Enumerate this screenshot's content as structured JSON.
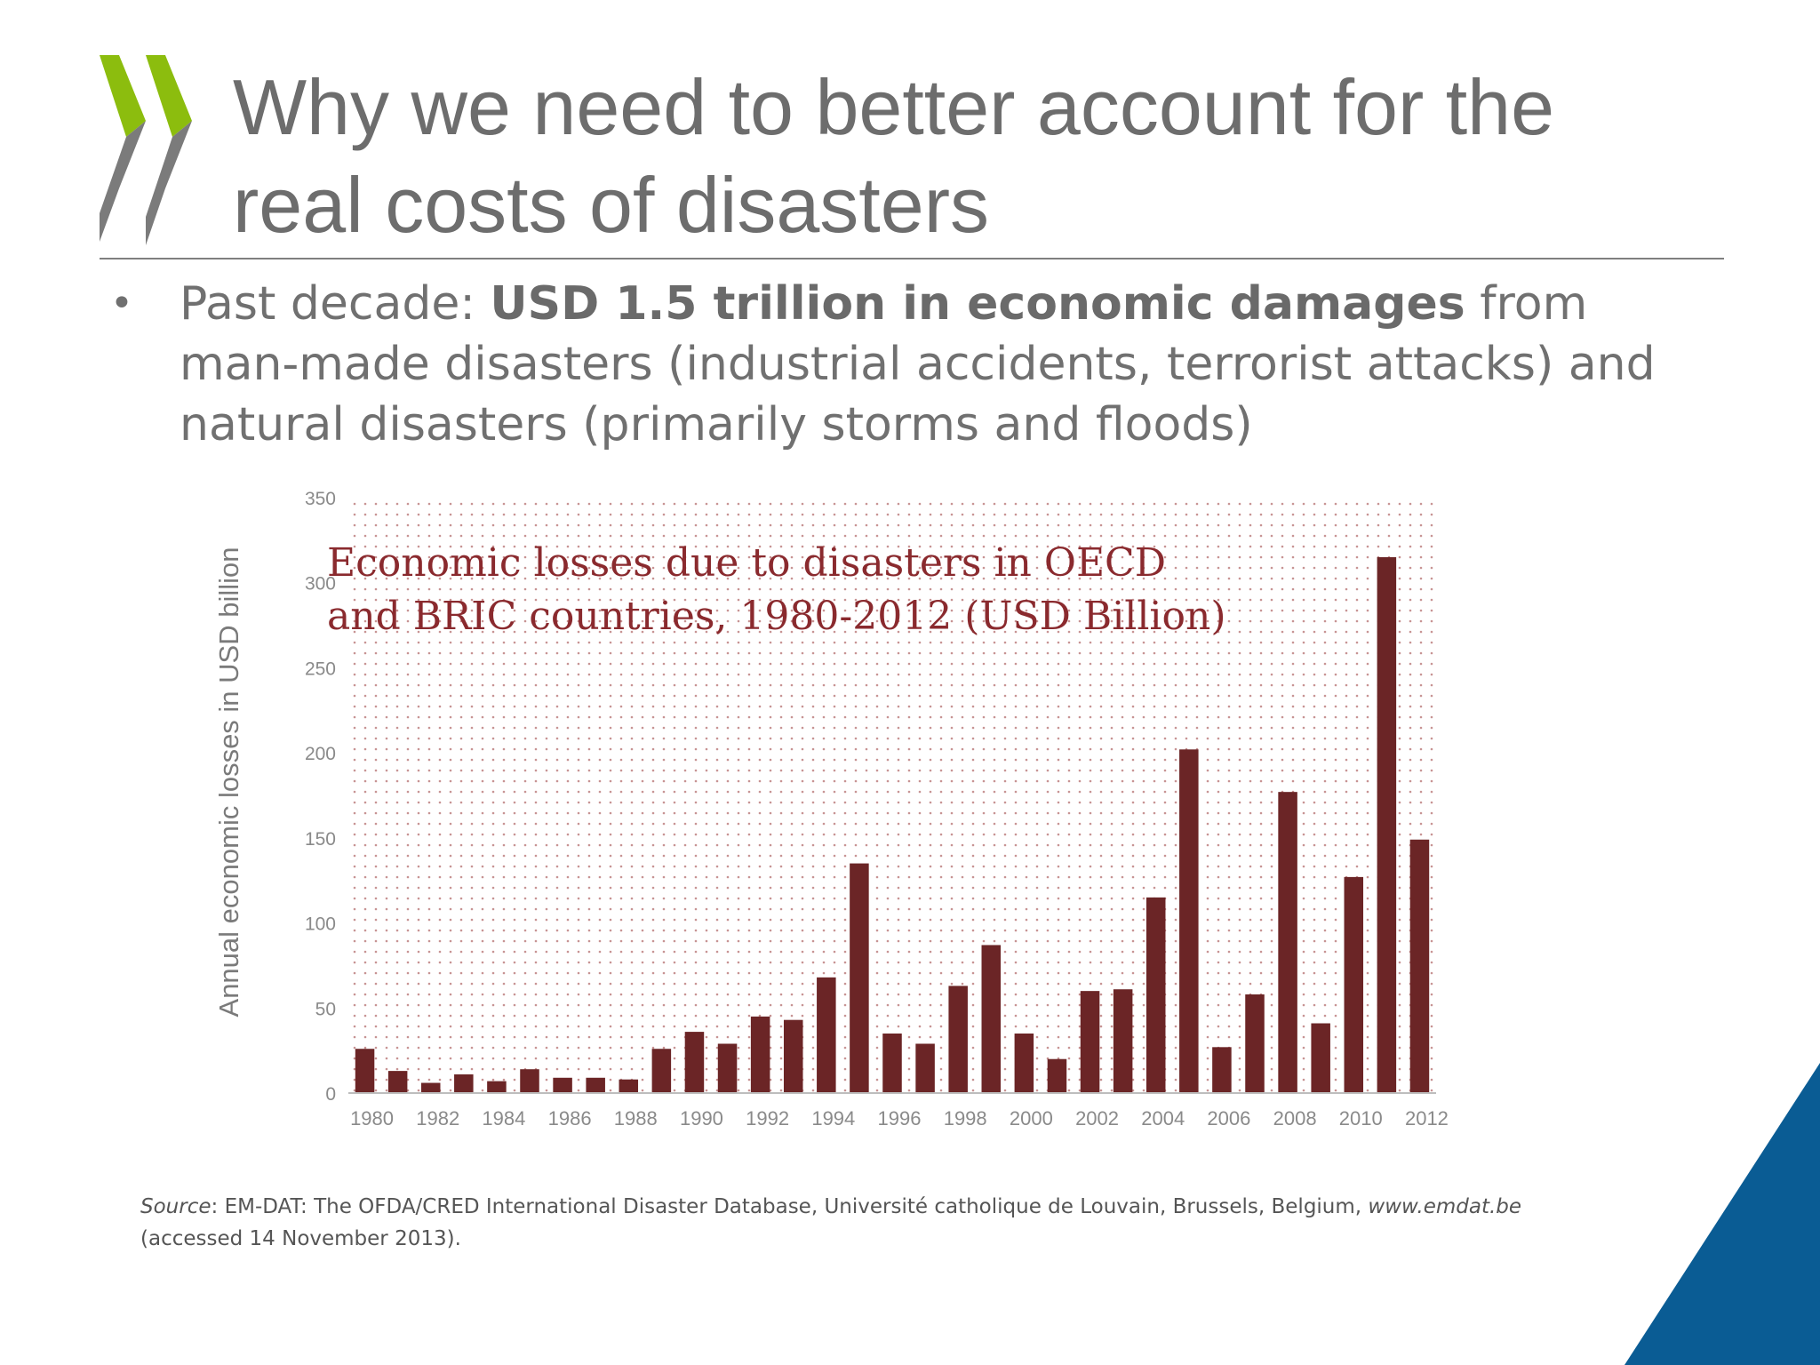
{
  "slide": {
    "title_line1": "Why we need to better account for the",
    "title_line2": "real costs of disasters",
    "bullet_pre": "Past decade: ",
    "bullet_bold": "USD 1.5 trillion in economic damages",
    "bullet_post": " from man-made disasters (industrial accidents, terrorist attacks) and natural disasters (primarily storms and floods)",
    "source_label": "Source",
    "source_text": ":  EM-DAT:  The OFDA/CRED  International Disaster Database, Université catholique de Louvain, Brussels, Belgium, ",
    "source_link": "www.emdat.be",
    "source_tail": "(accessed 14 November  2013).",
    "colors": {
      "logo_green": "#8cbd0e",
      "logo_grey": "#7b7b7b",
      "bar": "#6b2526",
      "corner_blue": "#0a5c94"
    }
  },
  "chart_data": {
    "type": "bar",
    "title_line1": "Economic losses due to disasters in OECD",
    "title_line2": "and BRIC countries, 1980-2012 (USD Billion)",
    "ylabel": "Annual economic losses in USD billion",
    "xlabel": "",
    "ylim": [
      0,
      350
    ],
    "yticks": [
      0,
      50,
      100,
      150,
      200,
      250,
      300,
      350
    ],
    "xtick_labels": [
      "1980",
      "1982",
      "1984",
      "1986",
      "1988",
      "1990",
      "1992",
      "1994",
      "1996",
      "1998",
      "2000",
      "2002",
      "2004",
      "2006",
      "2008",
      "2010",
      "2012"
    ],
    "categories": [
      "1980",
      "1981",
      "1982",
      "1983",
      "1984",
      "1985",
      "1986",
      "1987",
      "1988",
      "1989",
      "1990",
      "1991",
      "1992",
      "1993",
      "1994",
      "1995",
      "1996",
      "1997",
      "1998",
      "1999",
      "2000",
      "2001",
      "2002",
      "2003",
      "2004",
      "2005",
      "2006",
      "2007",
      "2008",
      "2009",
      "2010",
      "2011",
      "2012"
    ],
    "values": [
      26,
      13,
      6,
      11,
      7,
      14,
      9,
      9,
      8,
      26,
      36,
      29,
      45,
      43,
      68,
      135,
      35,
      29,
      63,
      87,
      35,
      20,
      60,
      61,
      115,
      202,
      27,
      58,
      177,
      41,
      127,
      315,
      149
    ],
    "grid": false,
    "legend": "none"
  }
}
